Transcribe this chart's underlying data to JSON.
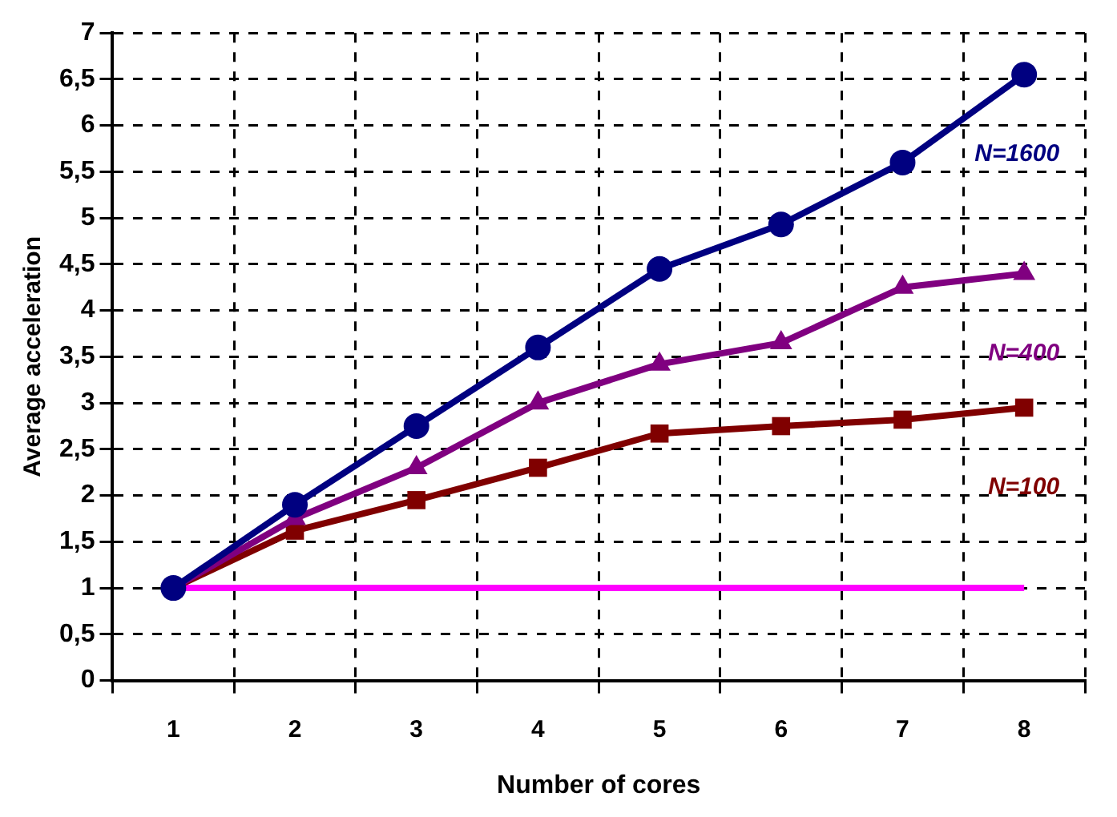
{
  "chart_data": {
    "type": "line",
    "xlabel": "Number of cores",
    "ylabel": "Average acceleration",
    "categories": [
      "1",
      "2",
      "3",
      "4",
      "5",
      "6",
      "7",
      "8"
    ],
    "series": [
      {
        "name": "N=1600",
        "color": "#000080",
        "marker": "circle",
        "values": [
          1,
          1.9,
          2.75,
          3.6,
          4.45,
          4.93,
          5.6,
          6.55
        ]
      },
      {
        "name": "N=400",
        "color": "#800080",
        "marker": "triangle",
        "values": [
          1,
          1.75,
          2.3,
          3.0,
          3.42,
          3.65,
          4.25,
          4.4
        ]
      },
      {
        "name": "N=100",
        "color": "#800000",
        "marker": "square",
        "values": [
          1,
          1.62,
          1.95,
          2.3,
          2.67,
          2.75,
          2.82,
          2.95
        ]
      },
      {
        "color": "#ff00ff",
        "marker": "none",
        "values": [
          1,
          1,
          1,
          1,
          1,
          1,
          1,
          1
        ]
      }
    ],
    "ylim": [
      0,
      7
    ],
    "yticks": [
      0,
      {
        "value": 0.5,
        "label": "0,5"
      },
      1,
      {
        "value": 1.5,
        "label": "1,5"
      },
      2,
      {
        "value": 2.5,
        "label": "2,5"
      },
      3,
      {
        "value": 3.5,
        "label": "3,5"
      },
      4,
      {
        "value": 4.5,
        "label": "4,5"
      },
      5,
      {
        "value": 5.5,
        "label": "5,5"
      },
      6,
      {
        "value": 6.5,
        "label": "6,5"
      },
      7
    ],
    "grid": true,
    "legend": false,
    "line_style": "solid"
  }
}
